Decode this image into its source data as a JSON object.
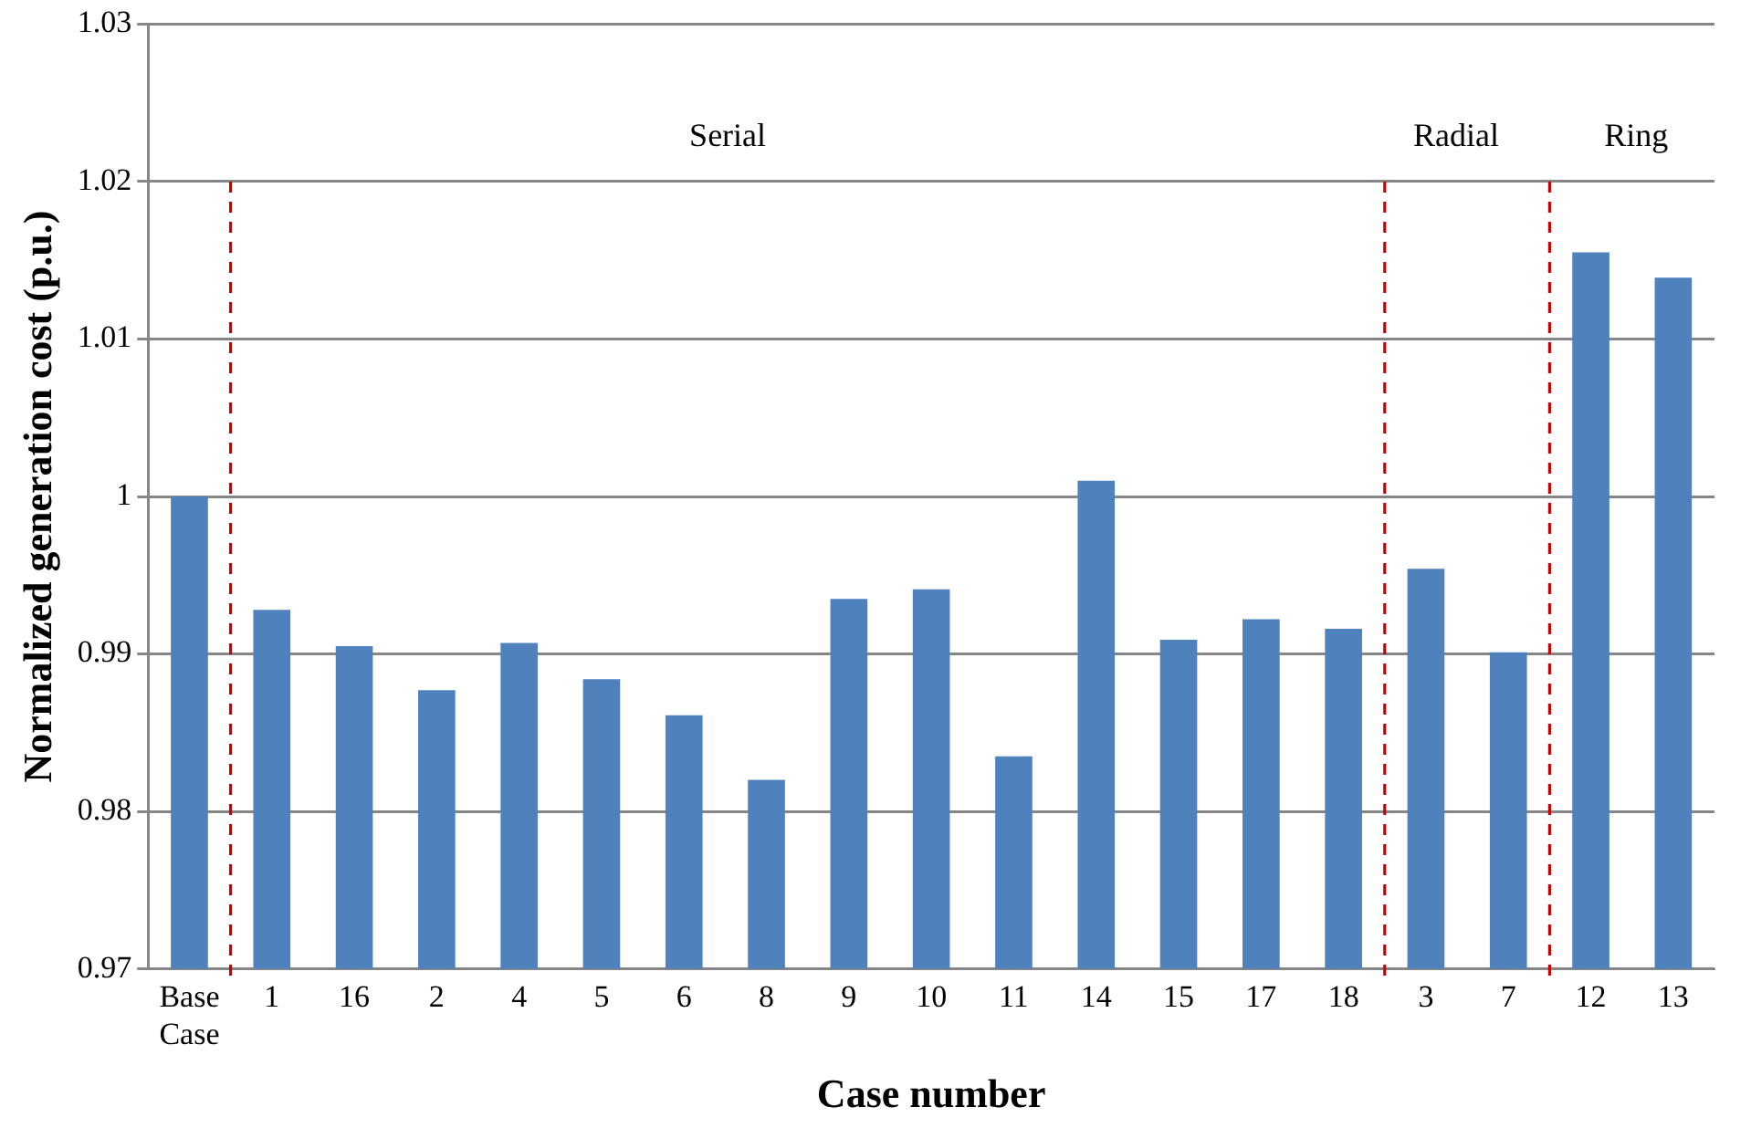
{
  "chart_data": {
    "type": "bar",
    "xlabel": "Case number",
    "ylabel": "Normalized generation cost (p.u.)",
    "categories": [
      "Base Case",
      "1",
      "16",
      "2",
      "4",
      "5",
      "6",
      "8",
      "9",
      "10",
      "11",
      "14",
      "15",
      "17",
      "18",
      "3",
      "7",
      "12",
      "13"
    ],
    "values": [
      1.0,
      0.9928,
      0.9905,
      0.9877,
      0.9907,
      0.9884,
      0.9861,
      0.982,
      0.9935,
      0.9941,
      0.9835,
      1.001,
      0.9909,
      0.9922,
      0.9916,
      0.9954,
      0.9901,
      1.0155,
      1.0139
    ],
    "color": "#4f81bd",
    "ylim": [
      0.97,
      1.03
    ],
    "yticks": [
      {
        "value": 0.97,
        "label": "0.97"
      },
      {
        "value": 0.98,
        "label": "0.98"
      },
      {
        "value": 0.99,
        "label": "0.99"
      },
      {
        "value": 1.0,
        "label": "1"
      },
      {
        "value": 1.01,
        "label": "1.01"
      },
      {
        "value": 1.02,
        "label": "1.02"
      },
      {
        "value": 1.03,
        "label": "1.03"
      }
    ],
    "grid": "y",
    "annotations": [
      "Serial",
      "Radial",
      "Ring"
    ]
  }
}
